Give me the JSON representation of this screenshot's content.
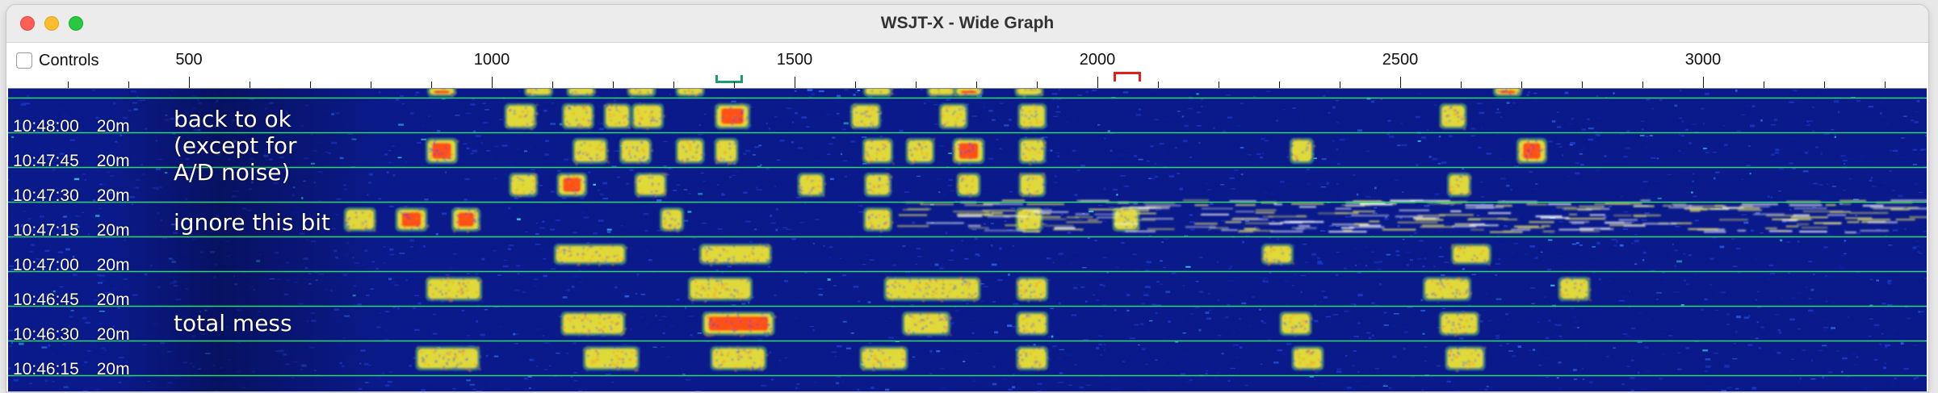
{
  "window": {
    "title": "WSJT-X - Wide Graph"
  },
  "controls": {
    "label": "Controls",
    "checked": false
  },
  "scale": {
    "labels": [
      "500",
      "1000",
      "1500",
      "2000",
      "2500",
      "3000"
    ],
    "rx_marker_hz": 1400,
    "tx_marker_hz": 2045
  },
  "waterfall": {
    "rows": [
      {
        "time": "10:48:00",
        "band": "20m"
      },
      {
        "time": "10:47:45",
        "band": "20m"
      },
      {
        "time": "10:47:30",
        "band": "20m"
      },
      {
        "time": "10:47:15",
        "band": "20m"
      },
      {
        "time": "10:47:00",
        "band": "20m"
      },
      {
        "time": "10:46:45",
        "band": "20m"
      },
      {
        "time": "10:46:30",
        "band": "20m"
      },
      {
        "time": "10:46:15",
        "band": "20m"
      }
    ],
    "annotations": [
      {
        "text": "back to ok"
      },
      {
        "text": "(except for"
      },
      {
        "text": "A/D noise)"
      },
      {
        "text": "ignore this bit"
      },
      {
        "text": "total mess"
      }
    ]
  },
  "colors": {
    "background": "#0a1a8a",
    "row_separator": "#2fd86a",
    "signal_low": "#ffef3a",
    "signal_high": "#ff4a14",
    "rx_marker": "#1f9a78",
    "tx_marker": "#e0201c"
  }
}
